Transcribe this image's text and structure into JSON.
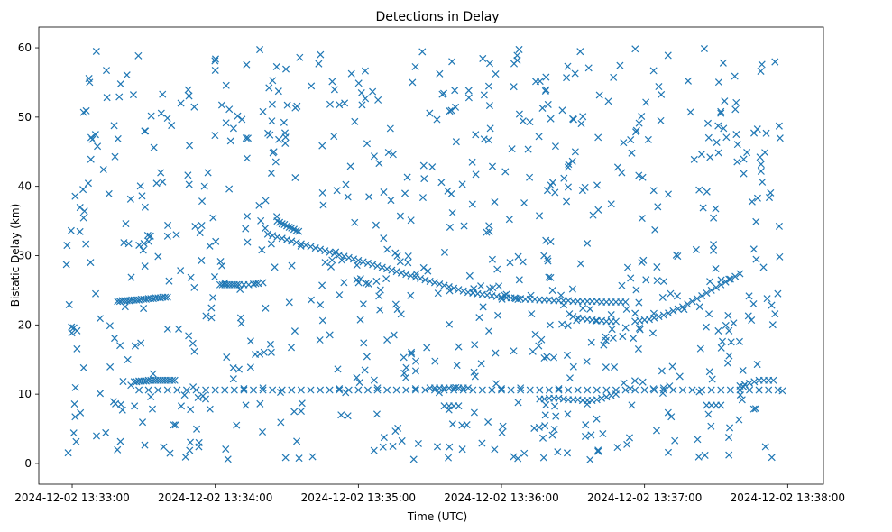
{
  "chart_data": {
    "type": "scatter",
    "title": "Detections in Delay",
    "xlabel": "Time (UTC)",
    "ylabel": "Bistatic Delay (km)",
    "marker": "x",
    "color": "#1f77b4",
    "x_unit": "seconds after 2024-12-02 13:33:00",
    "xlim": [
      -14,
      315
    ],
    "ylim": [
      -3,
      63
    ],
    "x_ticks": [
      {
        "value": 0,
        "label": "2024-12-02 13:33:00"
      },
      {
        "value": 60,
        "label": "2024-12-02 13:34:00"
      },
      {
        "value": 120,
        "label": "2024-12-02 13:35:00"
      },
      {
        "value": 180,
        "label": "2024-12-02 13:36:00"
      },
      {
        "value": 240,
        "label": "2024-12-02 13:37:00"
      },
      {
        "value": 300,
        "label": "2024-12-02 13:38:00"
      }
    ],
    "y_ticks": [
      {
        "value": 0,
        "label": "0"
      },
      {
        "value": 10,
        "label": "10"
      },
      {
        "value": 20,
        "label": "20"
      },
      {
        "value": 30,
        "label": "30"
      },
      {
        "value": 40,
        "label": "40"
      },
      {
        "value": 50,
        "label": "50"
      },
      {
        "value": 60,
        "label": "60"
      }
    ],
    "tracks": [
      {
        "name": "track-1",
        "x": [
          19,
          20,
          21,
          22,
          23,
          24,
          25,
          26,
          27,
          28,
          29,
          30,
          31,
          32,
          33,
          34,
          35,
          36,
          37,
          38,
          39,
          40
        ],
        "y": [
          23.4,
          23.4,
          23.5,
          23.5,
          23.5,
          23.5,
          23.6,
          23.6,
          23.6,
          23.6,
          23.7,
          23.7,
          23.7,
          23.8,
          23.8,
          23.8,
          23.9,
          23.9,
          23.9,
          24.0,
          24.0,
          24.0
        ]
      },
      {
        "name": "track-2",
        "x": [
          26,
          27,
          28,
          29,
          30,
          31,
          32,
          33,
          34,
          35,
          36,
          37,
          38,
          39,
          40,
          41,
          42,
          43
        ],
        "y": [
          11.8,
          11.8,
          11.9,
          11.9,
          11.9,
          11.9,
          12.0,
          12.0,
          12.0,
          12.0,
          12.0,
          12.0,
          12.0,
          12.0,
          12.0,
          12.0,
          12.0,
          12.0
        ]
      },
      {
        "name": "track-3",
        "x": [
          70,
          72,
          74,
          76,
          78,
          80,
          82,
          84,
          86,
          88,
          90,
          92,
          94,
          96,
          98,
          100,
          102,
          104,
          106,
          108,
          110,
          112,
          114,
          116,
          118,
          120,
          122,
          124,
          126,
          128,
          130,
          132,
          134,
          136,
          138,
          140,
          142,
          144,
          146,
          148,
          150,
          152,
          154,
          156,
          158,
          160,
          162,
          164,
          166,
          168,
          170,
          172,
          174,
          176,
          178,
          180,
          182,
          184,
          186,
          188,
          190,
          192,
          194,
          196,
          198,
          200,
          202,
          204,
          206,
          208,
          210,
          212,
          214,
          216,
          218,
          220,
          222,
          224,
          226,
          228,
          230,
          232
        ],
        "y": [
          25.8,
          25.8,
          25.8,
          25.9,
          26.0,
          26.1,
          33.1,
          32.9,
          32.7,
          32.5,
          32.3,
          32.1,
          31.9,
          31.7,
          31.5,
          31.3,
          31.1,
          30.9,
          30.7,
          30.5,
          30.3,
          30.1,
          29.9,
          29.7,
          29.5,
          29.3,
          29.1,
          28.9,
          28.7,
          28.5,
          28.3,
          28.1,
          27.9,
          27.7,
          27.5,
          27.3,
          27.1,
          26.9,
          26.7,
          26.5,
          26.3,
          26.1,
          25.9,
          25.7,
          25.5,
          25.3,
          25.1,
          24.9,
          24.7,
          24.6,
          24.5,
          24.4,
          24.3,
          24.2,
          24.1,
          24.0,
          23.9,
          23.9,
          23.8,
          23.8,
          23.7,
          23.7,
          23.7,
          23.6,
          23.6,
          23.6,
          23.5,
          23.5,
          23.5,
          23.5,
          23.4,
          23.4,
          23.4,
          23.4,
          23.4,
          23.4,
          23.3,
          23.3,
          23.3,
          23.3,
          23.3,
          23.3
        ]
      },
      {
        "name": "track-4",
        "x": [
          86,
          87,
          88,
          89,
          90,
          91,
          92,
          93,
          94,
          95
        ],
        "y": [
          35.0,
          34.8,
          34.6,
          34.5,
          34.3,
          34.1,
          34.0,
          33.8,
          33.6,
          33.5
        ]
      },
      {
        "name": "track-5",
        "x": [
          62,
          63,
          64,
          65,
          66,
          67,
          68,
          69
        ],
        "y": [
          25.8,
          25.8,
          25.8,
          25.8,
          25.8,
          25.8,
          25.8,
          25.8
        ]
      },
      {
        "name": "track-6",
        "x": [
          210,
          212,
          214,
          216,
          218,
          220,
          222,
          224,
          226,
          228
        ],
        "y": [
          21.2,
          21.0,
          20.9,
          20.8,
          20.7,
          20.6,
          20.6,
          20.5,
          20.5,
          20.5
        ]
      },
      {
        "name": "track-7",
        "x": [
          236,
          238,
          240,
          242,
          244,
          246,
          248,
          250,
          252,
          254,
          256,
          258,
          260,
          262,
          264,
          266,
          268,
          270,
          272,
          274,
          276,
          278,
          280
        ],
        "y": [
          20.5,
          20.6,
          20.7,
          20.8,
          21.0,
          21.2,
          21.4,
          21.7,
          22.0,
          22.3,
          22.6,
          23.0,
          23.4,
          23.8,
          24.2,
          24.6,
          25.0,
          25.4,
          25.8,
          26.2,
          26.6,
          27.0,
          27.4
        ]
      },
      {
        "name": "track-8",
        "x": [
          28,
          32,
          36,
          40,
          44,
          48,
          52,
          56,
          60,
          64,
          68,
          72,
          76,
          80,
          84,
          88,
          92,
          96,
          100,
          104,
          108,
          112,
          116,
          120,
          124,
          128,
          132,
          136,
          140,
          144,
          148,
          152,
          156,
          160,
          164,
          168,
          172,
          176,
          180,
          184,
          188,
          192,
          196,
          200,
          204,
          208,
          212,
          216,
          220,
          224,
          228,
          232,
          236,
          240,
          244,
          248,
          252,
          256,
          260,
          264,
          268,
          272,
          276,
          280,
          284,
          288,
          292,
          296
        ],
        "y": [
          10.6,
          10.6,
          10.6,
          10.6,
          10.6,
          10.6,
          10.6,
          10.6,
          10.6,
          10.6,
          10.6,
          10.6,
          10.6,
          10.6,
          10.6,
          10.6,
          10.6,
          10.6,
          10.6,
          10.6,
          10.6,
          10.6,
          10.6,
          10.6,
          10.6,
          10.6,
          10.6,
          10.6,
          10.6,
          10.6,
          10.6,
          10.6,
          10.6,
          10.6,
          10.6,
          10.6,
          10.6,
          10.6,
          10.6,
          10.6,
          10.6,
          10.6,
          10.6,
          10.6,
          10.6,
          10.6,
          10.6,
          10.6,
          10.6,
          10.6,
          10.6,
          10.6,
          10.6,
          10.6,
          10.6,
          10.6,
          10.6,
          10.6,
          10.6,
          10.6,
          10.6,
          10.6,
          10.6,
          10.6,
          10.6,
          10.6,
          10.6,
          10.6
        ]
      },
      {
        "name": "track-9",
        "x": [
          196,
          198,
          200,
          202,
          204,
          206,
          208,
          210,
          212,
          214,
          216,
          218,
          220,
          222,
          224,
          226,
          228
        ],
        "y": [
          9.3,
          9.3,
          9.4,
          9.4,
          9.4,
          9.3,
          9.2,
          9.2,
          9.2,
          9.1,
          9.1,
          9.1,
          9.2,
          9.4,
          9.6,
          9.8,
          10.0
        ]
      },
      {
        "name": "track-10",
        "x": [
          150,
          152,
          154,
          156,
          158,
          160,
          162,
          164,
          166
        ],
        "y": [
          10.9,
          10.9,
          10.9,
          10.9,
          10.9,
          10.9,
          10.9,
          10.9,
          10.9
        ]
      },
      {
        "name": "track-11",
        "x": [
          156,
          158,
          160,
          162
        ],
        "y": [
          8.3,
          8.3,
          8.3,
          8.3
        ]
      },
      {
        "name": "track-12",
        "x": [
          280,
          282,
          284,
          286,
          288,
          290,
          292,
          294
        ],
        "y": [
          11.2,
          11.4,
          11.6,
          11.8,
          12.0,
          12.0,
          12.0,
          12.0
        ]
      },
      {
        "name": "track-13",
        "x": [
          266,
          268,
          270,
          272
        ],
        "y": [
          8.4,
          8.4,
          8.4,
          8.4
        ]
      },
      {
        "name": "track-14",
        "x": [
          72,
          80,
          112,
          128,
          144,
          180,
          188,
          204,
          234,
          248
        ],
        "y": [
          10.8,
          10.9,
          10.8,
          10.9,
          10.8,
          10.8,
          10.9,
          10.8,
          10.8,
          10.9
        ]
      }
    ],
    "clutter": {
      "count": 760,
      "x_range": [
        -3,
        298
      ],
      "y_range": [
        0.5,
        60
      ],
      "seed": 12345
    }
  }
}
